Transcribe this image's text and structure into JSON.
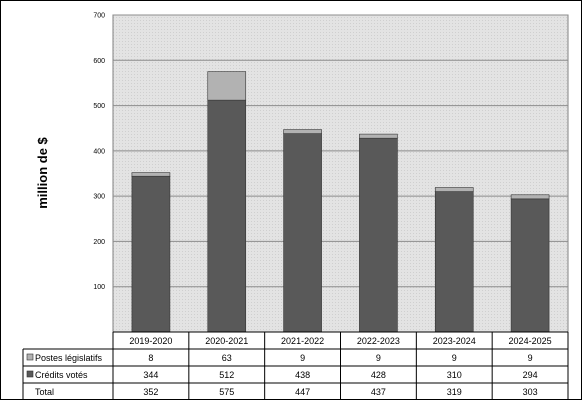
{
  "chart_data": {
    "type": "bar",
    "stacked": true,
    "ylabel": "million de $",
    "ylim": [
      0,
      700
    ],
    "yticks": [
      100,
      200,
      300,
      400,
      500,
      600,
      700
    ],
    "grid": true,
    "categories": [
      "2019-2020",
      "2020-2021",
      "2021-2022",
      "2022-2023",
      "2023-2024",
      "2024-2025"
    ],
    "series": [
      {
        "name": "Crédits votés",
        "values": [
          344,
          512,
          438,
          428,
          310,
          294
        ],
        "color": "#595959"
      },
      {
        "name": "Postes législatifs",
        "values": [
          8,
          63,
          9,
          9,
          9,
          9
        ],
        "color": "#b2b2b2"
      }
    ],
    "total": {
      "name": "Total",
      "values": [
        352,
        575,
        447,
        437,
        319,
        303
      ]
    },
    "plot_background": "#e6e6e6",
    "legend": "data-table-below"
  }
}
